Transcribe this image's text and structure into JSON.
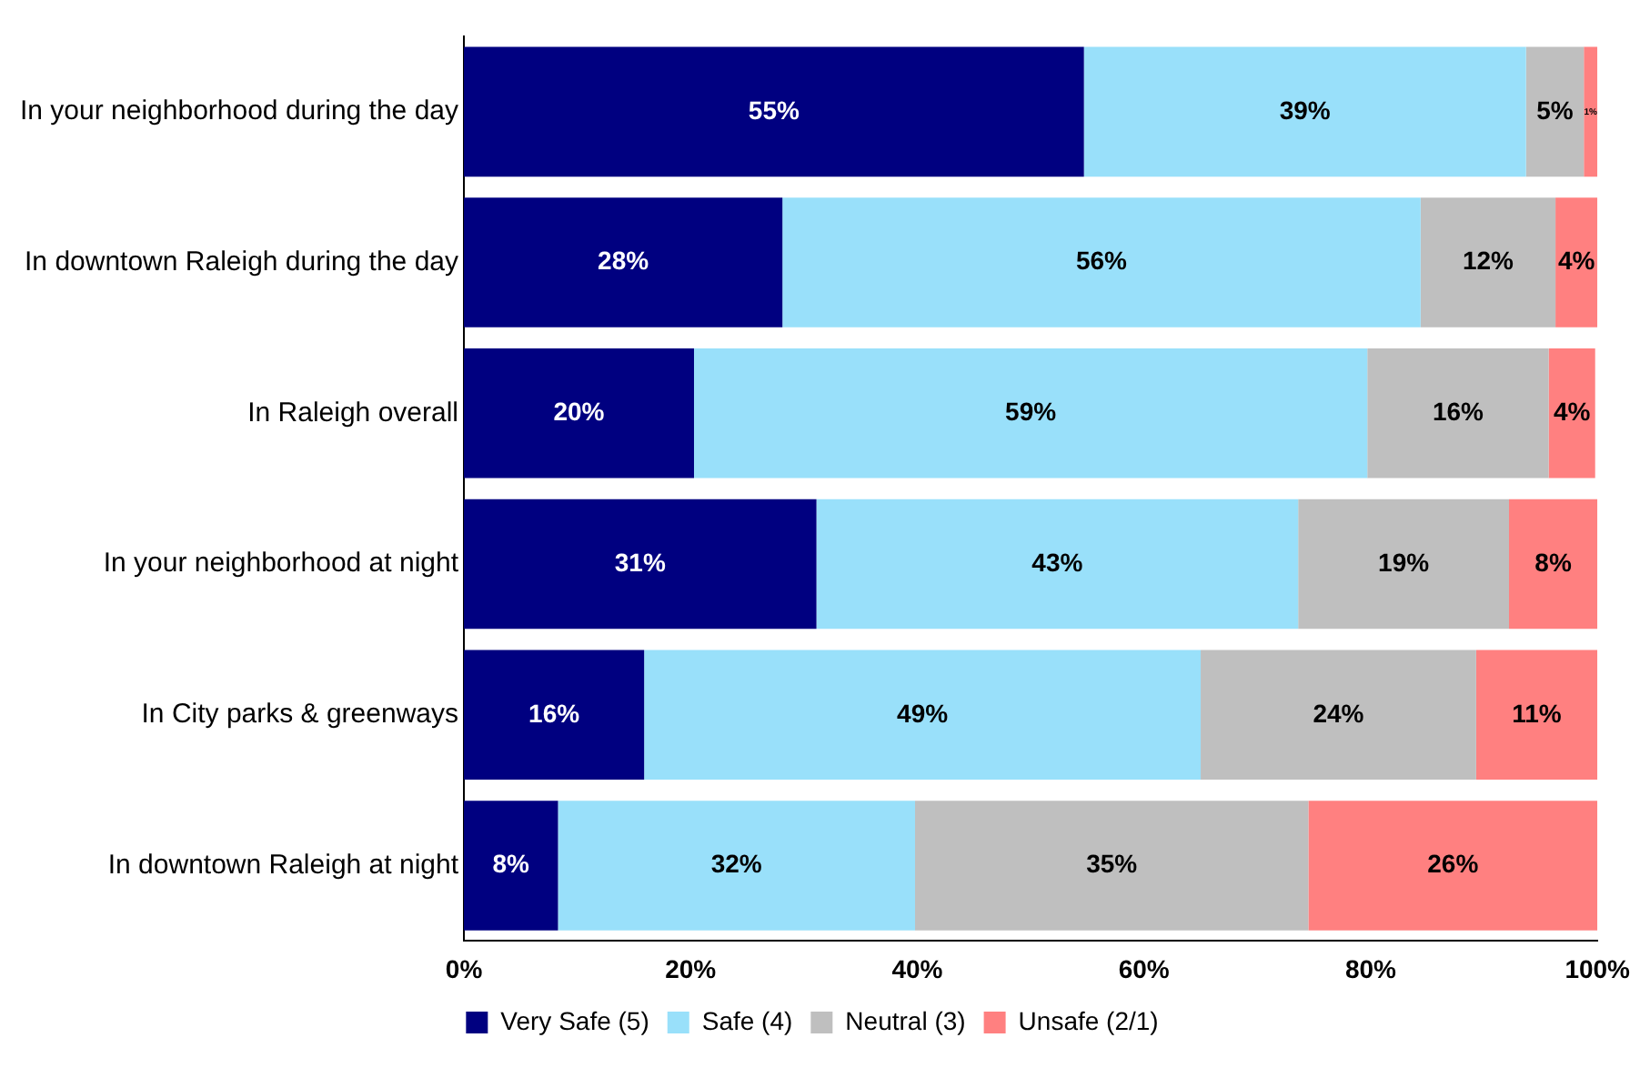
{
  "chart_data": {
    "type": "bar",
    "orientation": "horizontal",
    "stacked": true,
    "categories": [
      "In your neighborhood during the day",
      "In downtown Raleigh during the day",
      "In Raleigh overall",
      "In your neighborhood at night",
      "In City parks & greenways",
      "In downtown Raleigh at night"
    ],
    "series": [
      {
        "name": "Very Safe (5)",
        "color": "#000080",
        "values": [
          54.7,
          28.1,
          20.3,
          31.1,
          15.9,
          8.3
        ],
        "value_labels": [
          "55%",
          "28%",
          "20%",
          "31%",
          "16%",
          "8%"
        ]
      },
      {
        "name": "Safe (4)",
        "color": "#99e0fa",
        "values": [
          39.0,
          56.3,
          59.4,
          42.5,
          49.1,
          31.5
        ],
        "value_labels": [
          "39%",
          "56%",
          "59%",
          "43%",
          "49%",
          "32%"
        ]
      },
      {
        "name": "Neutral (3)",
        "color": "#bfbfbf",
        "values": [
          5.1,
          11.9,
          16.0,
          18.6,
          24.3,
          34.7
        ],
        "value_labels": [
          "5%",
          "12%",
          "16%",
          "19%",
          "24%",
          "35%"
        ]
      },
      {
        "name": "Unsafe (2/1)",
        "color": "#ff8080",
        "values": [
          1.2,
          3.7,
          4.1,
          7.8,
          10.7,
          25.5
        ],
        "value_labels": [
          "1%",
          "4%",
          "4%",
          "8%",
          "11%",
          "26%"
        ]
      }
    ],
    "xlim": [
      0,
      100
    ],
    "xticks": [
      {
        "value": 0,
        "label": "0%"
      },
      {
        "value": 20,
        "label": "20%"
      },
      {
        "value": 40,
        "label": "40%"
      },
      {
        "value": 60,
        "label": "60%"
      },
      {
        "value": 80,
        "label": "80%"
      },
      {
        "value": 100,
        "label": "100%"
      }
    ],
    "legend": "bottom",
    "grid": false
  }
}
